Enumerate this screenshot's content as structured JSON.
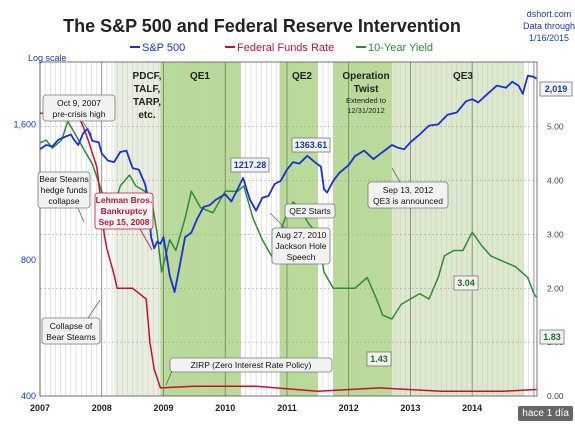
{
  "chart_data": {
    "type": "line",
    "title": "The S&P 500 and Federal Reserve Intervention",
    "credit": [
      "dshort.com",
      "Data through",
      "1/16/2015"
    ],
    "yscale_label": "Log scale",
    "left_axis": {
      "scale": "log",
      "ylim": [
        400,
        2200
      ],
      "ticks": [
        "1,600",
        "800",
        "400"
      ],
      "tick_values": [
        1600,
        800,
        400
      ]
    },
    "right_axis": {
      "ylim": [
        0,
        6.2
      ],
      "ticks": [
        "5.00",
        "4.00",
        "3.00",
        "2.00",
        "1.00",
        "0.00"
      ],
      "tick_values": [
        5,
        4,
        3,
        2,
        1,
        0
      ]
    },
    "x_ticks": [
      "2007",
      "2008",
      "2009",
      "2010",
      "2011",
      "2012",
      "2013",
      "2014"
    ],
    "x_tick_values": [
      2007,
      2008,
      2009,
      2010,
      2011,
      2012,
      2013,
      2014
    ],
    "xlim": [
      2007.0,
      2015.05
    ],
    "series": [
      {
        "name": "S&P 500",
        "color": "#1a2fd4",
        "axis": "left",
        "x": [
          2007.0,
          2007.1,
          2007.2,
          2007.3,
          2007.4,
          2007.5,
          2007.55,
          2007.62,
          2007.7,
          2007.77,
          2007.85,
          2007.95,
          2008.0,
          2008.1,
          2008.2,
          2008.3,
          2008.4,
          2008.5,
          2008.6,
          2008.7,
          2008.75,
          2008.8,
          2008.85,
          2008.9,
          2008.95,
          2009.0,
          2009.05,
          2009.1,
          2009.18,
          2009.25,
          2009.35,
          2009.45,
          2009.55,
          2009.65,
          2009.75,
          2009.85,
          2010.0,
          2010.1,
          2010.2,
          2010.29,
          2010.4,
          2010.5,
          2010.6,
          2010.7,
          2010.8,
          2010.9,
          2011.0,
          2011.1,
          2011.2,
          2011.33,
          2011.45,
          2011.55,
          2011.6,
          2011.65,
          2011.75,
          2011.85,
          2012.0,
          2012.1,
          2012.25,
          2012.4,
          2012.55,
          2012.7,
          2012.8,
          2012.9,
          2013.0,
          2013.15,
          2013.3,
          2013.45,
          2013.6,
          2013.75,
          2013.9,
          2014.0,
          2014.1,
          2014.25,
          2014.4,
          2014.55,
          2014.65,
          2014.75,
          2014.82,
          2014.9,
          2015.0,
          2015.04
        ],
        "y": [
          1410,
          1440,
          1430,
          1480,
          1500,
          1520,
          1480,
          1440,
          1530,
          1565,
          1470,
          1460,
          1380,
          1330,
          1320,
          1390,
          1400,
          1280,
          1270,
          1180,
          1100,
          900,
          850,
          880,
          870,
          900,
          820,
          740,
          680,
          760,
          900,
          920,
          990,
          1050,
          1060,
          1090,
          1120,
          1080,
          1150,
          1217,
          1090,
          1030,
          1100,
          1110,
          1180,
          1200,
          1270,
          1320,
          1310,
          1363,
          1320,
          1290,
          1150,
          1130,
          1200,
          1250,
          1300,
          1360,
          1400,
          1340,
          1390,
          1440,
          1420,
          1410,
          1460,
          1520,
          1590,
          1600,
          1680,
          1700,
          1800,
          1820,
          1790,
          1870,
          1950,
          1930,
          1990,
          1950,
          1870,
          2050,
          2040,
          2019
        ]
      },
      {
        "name": "Federal Funds Rate",
        "color": "#c8102e",
        "axis": "right",
        "x": [
          2007.0,
          2007.6,
          2007.7,
          2007.78,
          2007.85,
          2007.92,
          2008.0,
          2008.04,
          2008.08,
          2008.2,
          2008.25,
          2008.35,
          2008.5,
          2008.72,
          2008.78,
          2008.85,
          2008.95,
          2009.5,
          2010.5,
          2011.5,
          2012.5,
          2013.5,
          2014.5,
          2015.04
        ],
        "y": [
          5.25,
          5.25,
          5.0,
          4.75,
          4.5,
          4.25,
          3.5,
          3.0,
          2.75,
          2.25,
          2.0,
          2.0,
          2.0,
          1.8,
          1.0,
          0.5,
          0.15,
          0.18,
          0.18,
          0.09,
          0.15,
          0.09,
          0.09,
          0.12
        ]
      },
      {
        "name": "10-Year Yield",
        "color": "#2e8b3a",
        "axis": "right",
        "x": [
          2007.0,
          2007.1,
          2007.2,
          2007.35,
          2007.45,
          2007.55,
          2007.7,
          2007.85,
          2008.0,
          2008.1,
          2008.2,
          2008.3,
          2008.45,
          2008.55,
          2008.7,
          2008.8,
          2008.9,
          2008.97,
          2009.1,
          2009.2,
          2009.35,
          2009.45,
          2009.6,
          2009.8,
          2010.0,
          2010.2,
          2010.3,
          2010.45,
          2010.6,
          2010.75,
          2010.85,
          2011.0,
          2011.1,
          2011.2,
          2011.35,
          2011.5,
          2011.6,
          2011.75,
          2011.9,
          2012.1,
          2012.3,
          2012.45,
          2012.55,
          2012.7,
          2012.85,
          2013.0,
          2013.15,
          2013.3,
          2013.45,
          2013.55,
          2013.7,
          2013.85,
          2014.0,
          2014.15,
          2014.3,
          2014.5,
          2014.7,
          2014.8,
          2014.9,
          2015.0,
          2015.04
        ],
        "y": [
          4.7,
          4.75,
          4.6,
          4.75,
          5.1,
          4.9,
          4.6,
          4.3,
          3.8,
          3.6,
          3.5,
          3.9,
          4.1,
          3.9,
          3.8,
          3.7,
          3.0,
          2.3,
          2.9,
          2.7,
          3.3,
          3.8,
          3.5,
          3.4,
          3.8,
          3.8,
          3.9,
          3.3,
          2.9,
          2.6,
          2.9,
          3.4,
          3.6,
          3.5,
          3.2,
          3.0,
          2.3,
          2.0,
          2.0,
          2.0,
          2.2,
          1.8,
          1.5,
          1.43,
          1.7,
          1.8,
          1.9,
          1.8,
          2.2,
          2.6,
          2.7,
          2.7,
          3.04,
          2.8,
          2.6,
          2.5,
          2.4,
          2.3,
          2.2,
          1.9,
          1.83
        ]
      }
    ],
    "legend": {
      "placement": "top-center",
      "entries": [
        "S&P 500",
        "Federal Funds Rate",
        "10-Year Yield"
      ]
    },
    "shaded_regions": [
      {
        "label": "PDCF, TALF, TARP, etc.",
        "x0": 2008.2,
        "x1": 2008.95,
        "color": "#e9efe0"
      },
      {
        "label": "QE1",
        "x0": 2008.95,
        "x1": 2010.25,
        "color": "#b8db96"
      },
      {
        "label": "QE2",
        "x0": 2010.88,
        "x1": 2011.5,
        "color": "#b8db96"
      },
      {
        "label": "Operation Twist",
        "sublabel": [
          "Extended to",
          "12/31/2012"
        ],
        "x0": 2011.75,
        "x1": 2012.98,
        "color": "#b8db96"
      },
      {
        "label": "QE3",
        "x0": 2012.7,
        "x1": 2014.83,
        "color": "#dde9cc"
      }
    ],
    "annotations": [
      {
        "lines": [
          "Oct 9, 2007",
          "pre-crisis high"
        ],
        "style": "box"
      },
      {
        "lines": [
          "Bear Stearns",
          "hedge funds",
          "collapse"
        ],
        "style": "box"
      },
      {
        "lines": [
          "Lehman Bros.",
          "Bankruptcy",
          "Sep 15, 2008"
        ],
        "style": "red"
      },
      {
        "lines": [
          "Collapse of",
          "Bear Stearns"
        ],
        "style": "box"
      },
      {
        "lines": [
          "ZIRP (Zero Interest Rate Policy)"
        ],
        "style": "box"
      },
      {
        "lines": [
          "QE2 Starts"
        ],
        "style": "box"
      },
      {
        "lines": [
          "Aug 27, 2010",
          "Jackson Hole",
          "Speech"
        ],
        "style": "box"
      },
      {
        "lines": [
          "Sep 13, 2012",
          "QE3 is announced"
        ],
        "style": "box"
      }
    ],
    "value_labels": [
      {
        "text": "1217.28",
        "color": "blue"
      },
      {
        "text": "1363.61",
        "color": "blue"
      },
      {
        "text": "2,019",
        "color": "blue"
      },
      {
        "text": "3.04",
        "color": "green"
      },
      {
        "text": "1.43",
        "color": "green"
      },
      {
        "text": "1.83",
        "color": "green"
      }
    ]
  },
  "badge": "hace 1 día"
}
